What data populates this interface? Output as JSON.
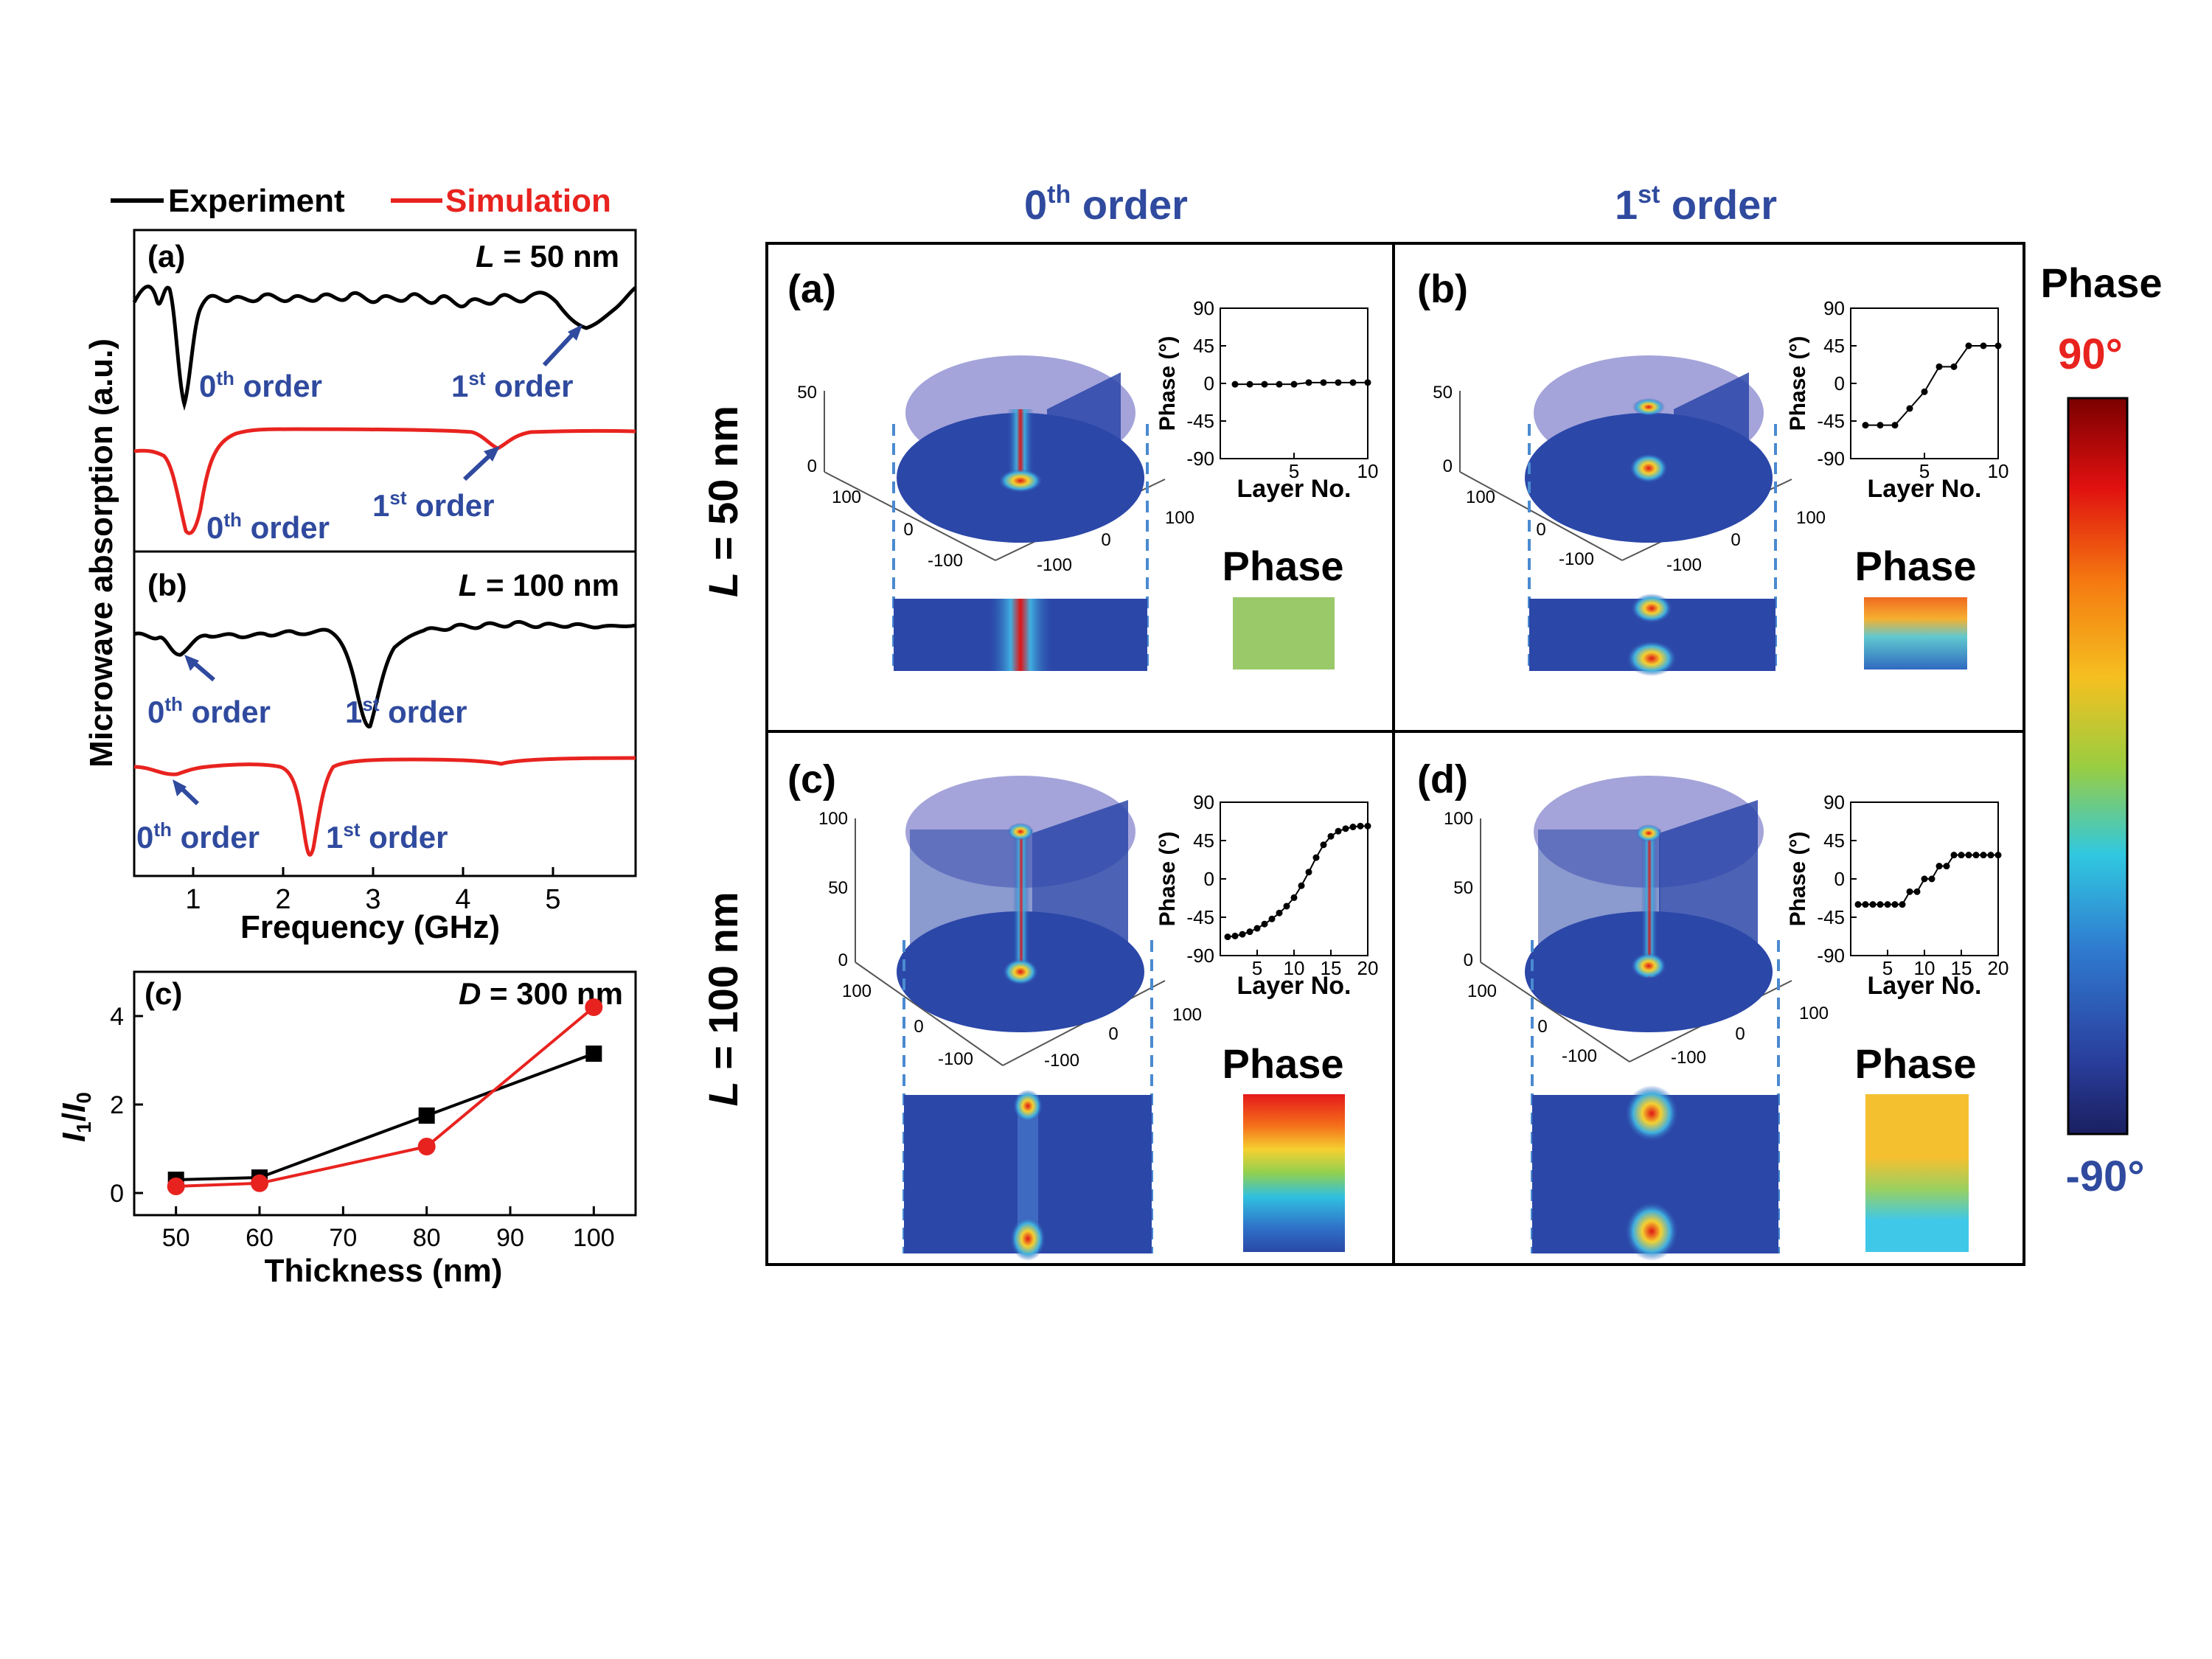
{
  "legend": {
    "experiment": "Experiment",
    "simulation": "Simulation"
  },
  "left": {
    "ylabel": "Microwave absorption (a.u.)",
    "xlabel": "Frequency (GHz)",
    "xticks": [
      "1",
      "2",
      "3",
      "4",
      "5"
    ],
    "panel_a": {
      "tag": "(a)",
      "label_var": "L",
      "label_rest": " = 50 nm"
    },
    "panel_b": {
      "tag": "(b)",
      "label_var": "L",
      "label_rest": " = 100 nm"
    },
    "order0_base": "0",
    "order0_sup": "th",
    "order1_base": "1",
    "order1_sup": "st",
    "order_word": " order",
    "panel_c": {
      "tag": "(c)",
      "label_var": "D",
      "label_rest": " = 300 nm",
      "xlabel": "Thickness (nm)",
      "ylabel_I1": "I",
      "ylabel_sub1": "1",
      "ylabel_slash": "/",
      "ylabel_I0": "I",
      "ylabel_sub0": "0"
    }
  },
  "chart_data": [
    {
      "type": "line",
      "title": "",
      "xlabel": "Thickness (nm)",
      "ylabel": "I1/I0",
      "x": [
        50,
        60,
        80,
        100
      ],
      "xlim": [
        45,
        105
      ],
      "ylim": [
        -0.5,
        5
      ],
      "xticks": [
        50,
        60,
        70,
        80,
        90,
        100
      ],
      "yticks": [
        0,
        2,
        4
      ],
      "series": [
        {
          "name": "Experiment",
          "color": "#000000",
          "marker": "square",
          "values": [
            0.3,
            0.35,
            1.75,
            3.15
          ]
        },
        {
          "name": "Simulation",
          "color": "#e8231f",
          "marker": "circle",
          "values": [
            0.15,
            0.22,
            1.05,
            4.2
          ]
        }
      ]
    },
    {
      "type": "line",
      "title": "",
      "xlabel": "Layer No.",
      "ylabel": "Phase (°)",
      "panel": "(a)",
      "x": [
        1,
        2,
        3,
        4,
        5,
        6,
        7,
        8,
        9,
        10
      ],
      "xlim": [
        0,
        10
      ],
      "ylim": [
        -90,
        90
      ],
      "xticks": [
        5,
        10
      ],
      "yticks": [
        -90,
        -45,
        0,
        45,
        90
      ],
      "series": [
        {
          "values": [
            -1,
            -1,
            -1,
            -1,
            -1,
            1,
            1,
            1,
            1,
            1
          ]
        }
      ]
    },
    {
      "type": "line",
      "title": "",
      "xlabel": "Layer No.",
      "ylabel": "Phase (°)",
      "panel": "(b)",
      "x": [
        1,
        2,
        3,
        4,
        5,
        6,
        7,
        8,
        9,
        10
      ],
      "xlim": [
        0,
        10
      ],
      "ylim": [
        -90,
        90
      ],
      "xticks": [
        5,
        10
      ],
      "yticks": [
        -90,
        -45,
        0,
        45,
        90
      ],
      "series": [
        {
          "values": [
            -50,
            -50,
            -50,
            -30,
            -10,
            20,
            20,
            45,
            45,
            45
          ]
        }
      ]
    },
    {
      "type": "line",
      "title": "",
      "xlabel": "Layer No.",
      "ylabel": "Phase (°)",
      "panel": "(c)",
      "x": [
        1,
        2,
        3,
        4,
        5,
        6,
        7,
        8,
        9,
        10,
        11,
        12,
        13,
        14,
        15,
        16,
        17,
        18,
        19,
        20
      ],
      "xlim": [
        0,
        20
      ],
      "ylim": [
        -90,
        90
      ],
      "xticks": [
        5,
        10,
        15,
        20
      ],
      "yticks": [
        -90,
        -45,
        0,
        45,
        90
      ],
      "series": [
        {
          "values": [
            -68,
            -67,
            -65,
            -62,
            -58,
            -53,
            -47,
            -40,
            -32,
            -22,
            -8,
            8,
            25,
            40,
            50,
            56,
            59,
            61,
            62,
            62
          ]
        }
      ]
    },
    {
      "type": "line",
      "title": "",
      "xlabel": "Layer No.",
      "ylabel": "Phase (°)",
      "panel": "(d)",
      "x": [
        1,
        2,
        3,
        4,
        5,
        6,
        7,
        8,
        9,
        10,
        11,
        12,
        13,
        14,
        15,
        16,
        17,
        18,
        19,
        20
      ],
      "xlim": [
        0,
        20
      ],
      "ylim": [
        -90,
        90
      ],
      "xticks": [
        5,
        10,
        15,
        20
      ],
      "yticks": [
        -90,
        -45,
        0,
        45,
        90
      ],
      "series": [
        {
          "values": [
            -30,
            -30,
            -30,
            -30,
            -30,
            -30,
            -30,
            -15,
            -15,
            0,
            0,
            15,
            15,
            28,
            28,
            28,
            28,
            28,
            28,
            28
          ]
        }
      ]
    }
  ],
  "right": {
    "col0_base": "0",
    "col0_sup": "th",
    "col0_rest": " order",
    "col1_base": "1",
    "col1_sup": "st",
    "col1_rest": " order",
    "row0_var": "L",
    "row0_rest": " = 50 nm",
    "row1_var": "L",
    "row1_rest": " = 100 nm",
    "panels": [
      "(a)",
      "(b)",
      "(c)",
      "(d)"
    ],
    "phase_label": "Phase",
    "layer_label": "Layer No.",
    "phase_axis_label": "Phase (°)",
    "phase_ticks": [
      "90",
      "45",
      "0",
      "-45",
      "-90"
    ],
    "layer_ticks_10": [
      "5",
      "10"
    ],
    "layer_ticks_20": [
      "5",
      "10",
      "15",
      "20"
    ],
    "axis_z_50": [
      "50",
      "0"
    ],
    "axis_z_100": [
      "100",
      "50",
      "0"
    ],
    "axis_xy": [
      "100",
      "0",
      "-100",
      "-100",
      "0",
      "100"
    ]
  },
  "colorbar": {
    "title": "Phase",
    "max_label": "90°",
    "min_label": "-90°"
  }
}
